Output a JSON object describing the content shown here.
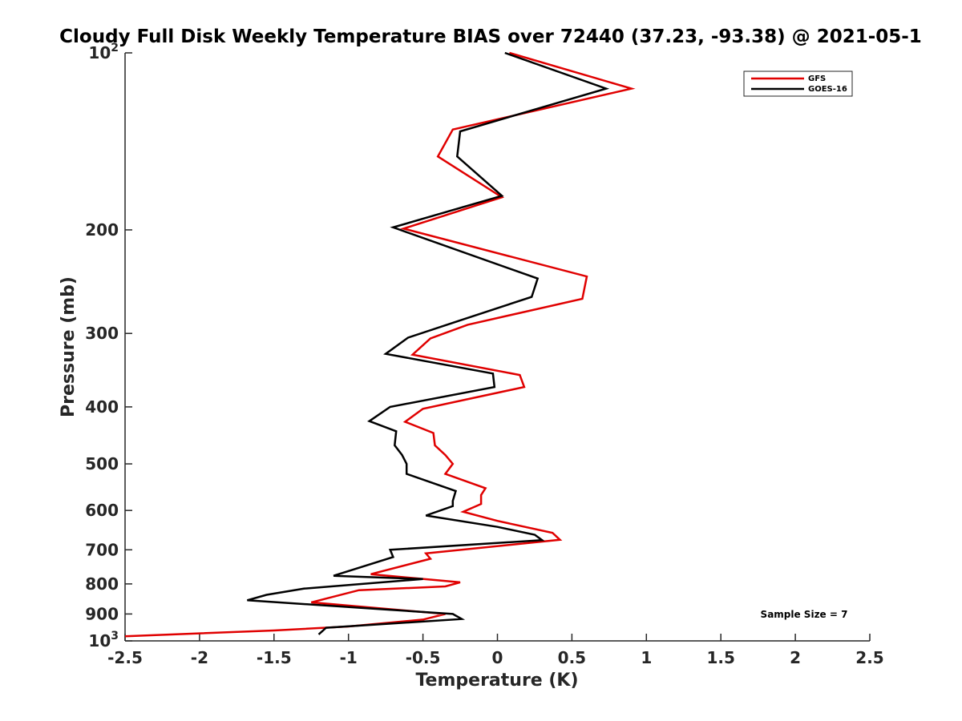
{
  "chart_data": {
    "type": "line",
    "title": "Cloudy Full Disk Weekly Temperature BIAS over 72440 (37.23, -93.38) @ 2021-05-1",
    "xlabel": "Temperature (K)",
    "ylabel": "Pressure (mb)",
    "xlim": [
      -2.5,
      2.5
    ],
    "ylim": [
      100,
      1000
    ],
    "y_scale": "log",
    "y_reversed": true,
    "grid": false,
    "legend_position": "top-right",
    "x_ticks": [
      "-2.5",
      "-2",
      "-1.5",
      "-1",
      "-0.5",
      "0",
      "0.5",
      "1",
      "1.5",
      "2",
      "2.5"
    ],
    "y_ticks": [
      {
        "value": 100,
        "label": "10",
        "sup": "2"
      },
      {
        "value": 200,
        "label": "200",
        "sup": ""
      },
      {
        "value": 300,
        "label": "300",
        "sup": ""
      },
      {
        "value": 400,
        "label": "400",
        "sup": ""
      },
      {
        "value": 500,
        "label": "500",
        "sup": ""
      },
      {
        "value": 600,
        "label": "600",
        "sup": ""
      },
      {
        "value": 700,
        "label": "700",
        "sup": ""
      },
      {
        "value": 800,
        "label": "800",
        "sup": ""
      },
      {
        "value": 900,
        "label": "900",
        "sup": ""
      },
      {
        "value": 1000,
        "label": "10",
        "sup": "3"
      }
    ],
    "annotation": "Sample Size = 7",
    "series": [
      {
        "name": "GFS",
        "color": "#e00000",
        "points": [
          {
            "x": 0.08,
            "p": 100
          },
          {
            "x": 0.9,
            "p": 115
          },
          {
            "x": -0.3,
            "p": 135
          },
          {
            "x": -0.4,
            "p": 150
          },
          {
            "x": 0.03,
            "p": 176
          },
          {
            "x": -0.63,
            "p": 199
          },
          {
            "x": 0.6,
            "p": 240
          },
          {
            "x": 0.57,
            "p": 262
          },
          {
            "x": -0.2,
            "p": 290
          },
          {
            "x": -0.45,
            "p": 306
          },
          {
            "x": -0.57,
            "p": 326
          },
          {
            "x": 0.15,
            "p": 353
          },
          {
            "x": 0.18,
            "p": 370
          },
          {
            "x": -0.5,
            "p": 403
          },
          {
            "x": -0.62,
            "p": 424
          },
          {
            "x": -0.43,
            "p": 443
          },
          {
            "x": -0.42,
            "p": 465
          },
          {
            "x": -0.35,
            "p": 483
          },
          {
            "x": -0.3,
            "p": 500
          },
          {
            "x": -0.35,
            "p": 520
          },
          {
            "x": -0.08,
            "p": 550
          },
          {
            "x": -0.11,
            "p": 565
          },
          {
            "x": -0.11,
            "p": 585
          },
          {
            "x": -0.23,
            "p": 603
          },
          {
            "x": 0.0,
            "p": 625
          },
          {
            "x": 0.37,
            "p": 655
          },
          {
            "x": 0.42,
            "p": 673
          },
          {
            "x": -0.48,
            "p": 710
          },
          {
            "x": -0.45,
            "p": 725
          },
          {
            "x": -0.85,
            "p": 770
          },
          {
            "x": -0.25,
            "p": 795
          },
          {
            "x": -0.35,
            "p": 808
          },
          {
            "x": -0.93,
            "p": 820
          },
          {
            "x": -1.25,
            "p": 860
          },
          {
            "x": -0.35,
            "p": 900
          },
          {
            "x": -0.5,
            "p": 920
          },
          {
            "x": -1.0,
            "p": 945
          },
          {
            "x": -1.5,
            "p": 960
          },
          {
            "x": -2.5,
            "p": 982
          }
        ]
      },
      {
        "name": "GOES-16",
        "color": "#000000",
        "points": [
          {
            "x": 0.05,
            "p": 100
          },
          {
            "x": 0.73,
            "p": 115
          },
          {
            "x": -0.25,
            "p": 136
          },
          {
            "x": -0.27,
            "p": 150
          },
          {
            "x": 0.03,
            "p": 175
          },
          {
            "x": -0.7,
            "p": 198
          },
          {
            "x": 0.27,
            "p": 242
          },
          {
            "x": 0.23,
            "p": 260
          },
          {
            "x": -0.25,
            "p": 285
          },
          {
            "x": -0.6,
            "p": 305
          },
          {
            "x": -0.75,
            "p": 325
          },
          {
            "x": -0.03,
            "p": 351
          },
          {
            "x": -0.02,
            "p": 370
          },
          {
            "x": -0.72,
            "p": 400
          },
          {
            "x": -0.86,
            "p": 423
          },
          {
            "x": -0.68,
            "p": 440
          },
          {
            "x": -0.69,
            "p": 465
          },
          {
            "x": -0.64,
            "p": 483
          },
          {
            "x": -0.61,
            "p": 500
          },
          {
            "x": -0.61,
            "p": 520
          },
          {
            "x": -0.28,
            "p": 556
          },
          {
            "x": -0.3,
            "p": 578
          },
          {
            "x": -0.3,
            "p": 590
          },
          {
            "x": -0.48,
            "p": 612
          },
          {
            "x": 0.0,
            "p": 640
          },
          {
            "x": 0.25,
            "p": 660
          },
          {
            "x": 0.3,
            "p": 674
          },
          {
            "x": -0.72,
            "p": 700
          },
          {
            "x": -0.7,
            "p": 720
          },
          {
            "x": -1.1,
            "p": 775
          },
          {
            "x": -0.5,
            "p": 785
          },
          {
            "x": -1.3,
            "p": 815
          },
          {
            "x": -1.55,
            "p": 835
          },
          {
            "x": -1.68,
            "p": 853
          },
          {
            "x": -0.3,
            "p": 900
          },
          {
            "x": -0.24,
            "p": 918
          },
          {
            "x": -1.15,
            "p": 950
          },
          {
            "x": -1.2,
            "p": 975
          }
        ]
      }
    ]
  }
}
